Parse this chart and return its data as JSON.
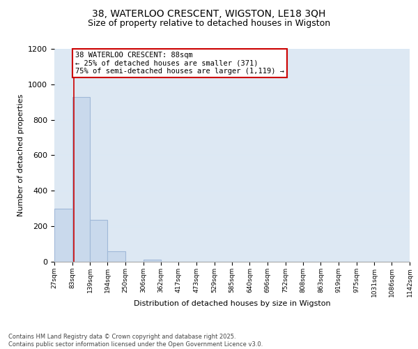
{
  "title_line1": "38, WATERLOO CRESCENT, WIGSTON, LE18 3QH",
  "title_line2": "Size of property relative to detached houses in Wigston",
  "xlabel": "Distribution of detached houses by size in Wigston",
  "ylabel": "Number of detached properties",
  "bin_edges": [
    27,
    83,
    139,
    194,
    250,
    306,
    362,
    417,
    473,
    529,
    585,
    640,
    696,
    752,
    808,
    863,
    919,
    975,
    1031,
    1086,
    1142
  ],
  "bar_heights": [
    300,
    930,
    235,
    60,
    0,
    10,
    0,
    0,
    0,
    0,
    0,
    0,
    0,
    0,
    0,
    0,
    0,
    0,
    0,
    0
  ],
  "bar_color": "#c9d9ec",
  "bar_edge_color": "#a0b8d8",
  "bar_linewidth": 0.8,
  "grid_color": "#dce8f5",
  "bg_color": "#dde8f3",
  "ylim": [
    0,
    1200
  ],
  "yticks": [
    0,
    200,
    400,
    600,
    800,
    1000,
    1200
  ],
  "red_line_x": 88,
  "annotation_line1": "38 WATERLOO CRESCENT: 88sqm",
  "annotation_line2": "← 25% of detached houses are smaller (371)",
  "annotation_line3": "75% of semi-detached houses are larger (1,119) →",
  "annotation_box_color": "#ffffff",
  "annotation_edge_color": "#cc0000",
  "footer_text": "Contains HM Land Registry data © Crown copyright and database right 2025.\nContains public sector information licensed under the Open Government Licence v3.0.",
  "red_line_color": "#cc0000",
  "title_fontsize": 10,
  "subtitle_fontsize": 9,
  "ylabel_fontsize": 8,
  "xlabel_fontsize": 8,
  "ytick_fontsize": 8,
  "xtick_fontsize": 6.5,
  "annot_fontsize": 7.5,
  "footer_fontsize": 6
}
